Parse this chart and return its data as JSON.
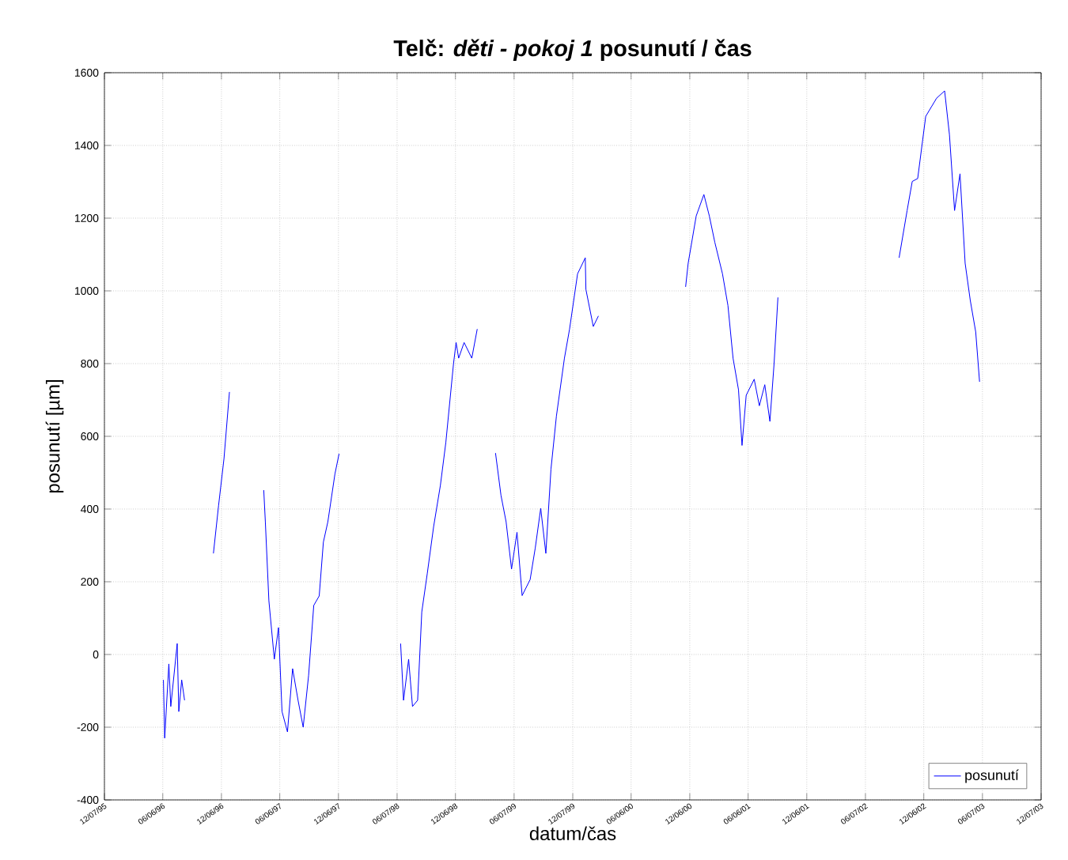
{
  "chart_data": {
    "type": "line",
    "title": "Telč: *děti - pokoj 1* posunutí / čas",
    "xlabel": "datum/čas",
    "ylabel": "posunutí [µm]",
    "x": [
      "1996-06-08",
      "1996-06-12",
      "1996-06-25",
      "1996-07-01",
      "1996-07-21",
      "1996-07-26",
      "1996-08-04",
      "1996-08-13",
      "1996-10-01",
      "1996-11-11",
      "1996-11-27",
      "1996-12-14",
      "1996-12-31",
      "1997-03-01",
      "1997-04-17",
      "1997-04-22",
      "1997-05-03",
      "1997-05-20",
      "1997-06-02",
      "1997-06-13",
      "1997-06-30",
      "1997-07-16",
      "1997-08-02",
      "1997-08-18",
      "1997-09-04",
      "1997-09-20",
      "1997-10-07",
      "1997-10-20",
      "1997-11-03",
      "1997-11-25",
      "1997-12-08",
      "1998-03-01",
      "1998-06-18",
      "1998-06-27",
      "1998-07-13",
      "1998-07-25",
      "1998-08-10",
      "1998-08-23",
      "1998-09-09",
      "1998-09-29",
      "1998-10-20",
      "1998-11-06",
      "1998-11-30",
      "1998-12-08",
      "1998-12-16",
      "1999-01-02",
      "1999-01-26",
      "1999-02-12",
      "1999-03-10",
      "1999-04-10",
      "1999-04-27",
      "1999-05-13",
      "1999-05-30",
      "1999-06-16",
      "1999-07-02",
      "1999-07-27",
      "1999-08-12",
      "1999-08-29",
      "1999-09-14",
      "1999-09-30",
      "1999-10-17",
      "1999-11-11",
      "1999-11-27",
      "1999-12-22",
      "2000-01-15",
      "2000-01-17",
      "2000-02-09",
      "2000-02-25",
      "2000-06-01",
      "2000-11-23",
      "2000-12-01",
      "2000-12-26",
      "2001-01-19",
      "2001-02-05",
      "2001-02-22",
      "2001-03-18",
      "2001-04-04",
      "2001-04-20",
      "2001-05-07",
      "2001-05-18",
      "2001-05-31",
      "2001-06-25",
      "2001-07-11",
      "2001-07-28",
      "2001-08-13",
      "2001-08-26",
      "2001-09-07",
      "2002-01-01",
      "2002-09-20",
      "2002-10-15",
      "2002-10-31",
      "2002-11-17",
      "2002-12-12",
      "2003-01-15",
      "2003-02-09",
      "2003-02-24",
      "2003-03-12",
      "2003-03-29",
      "2003-04-14",
      "2003-04-30",
      "2003-05-17",
      "2003-05-29"
    ],
    "series": [
      {
        "name": "posunutí",
        "color": "#0000ff",
        "values": [
          -70,
          -230,
          -26,
          -143,
          30,
          -157,
          -70,
          -126,
          null,
          278,
          409,
          539,
          722,
          null,
          452,
          365,
          148,
          -13,
          74,
          -157,
          -213,
          -39,
          -126,
          -200,
          -57,
          135,
          161,
          309,
          365,
          496,
          552,
          null,
          30,
          -126,
          -13,
          -143,
          -126,
          117,
          222,
          352,
          465,
          583,
          800,
          858,
          815,
          858,
          815,
          895,
          null,
          554,
          438,
          365,
          235,
          336,
          162,
          206,
          293,
          402,
          278,
          510,
          656,
          815,
          895,
          1047,
          1091,
          1004,
          902,
          931,
          null,
          1011,
          1076,
          1206,
          1265,
          1206,
          1134,
          1047,
          960,
          815,
          728,
          575,
          713,
          757,
          684,
          742,
          641,
          800,
          982,
          null,
          1091,
          1221,
          1301,
          1309,
          1480,
          1530,
          1550,
          1430,
          1221,
          1322,
          1076,
          974,
          887,
          750
        ]
      }
    ],
    "xlim": [
      "1995-12-07",
      "2003-12-07"
    ],
    "xticks": [
      {
        "value": "1995-12-07",
        "label": "12/07/95"
      },
      {
        "value": "1996-06-06",
        "label": "06/06/96"
      },
      {
        "value": "1996-12-06",
        "label": "12/06/96"
      },
      {
        "value": "1997-06-06",
        "label": "06/06/97"
      },
      {
        "value": "1997-12-06",
        "label": "12/06/97"
      },
      {
        "value": "1998-06-07",
        "label": "06/07/98"
      },
      {
        "value": "1998-12-06",
        "label": "12/06/98"
      },
      {
        "value": "1999-06-07",
        "label": "06/07/99"
      },
      {
        "value": "1999-12-07",
        "label": "12/07/99"
      },
      {
        "value": "2000-06-06",
        "label": "06/06/00"
      },
      {
        "value": "2000-12-06",
        "label": "12/06/00"
      },
      {
        "value": "2001-06-06",
        "label": "06/06/01"
      },
      {
        "value": "2001-12-06",
        "label": "12/06/01"
      },
      {
        "value": "2002-06-07",
        "label": "06/07/02"
      },
      {
        "value": "2002-12-06",
        "label": "12/06/02"
      },
      {
        "value": "2003-06-07",
        "label": "06/07/03"
      },
      {
        "value": "2003-12-07",
        "label": "12/07/03"
      }
    ],
    "ylim": [
      -400,
      1600
    ],
    "yticks": [
      -400,
      -200,
      0,
      200,
      400,
      600,
      800,
      1000,
      1200,
      1400,
      1600
    ],
    "grid": true,
    "legend": "bottom right",
    "marker": "none",
    "line_style": "solid"
  }
}
